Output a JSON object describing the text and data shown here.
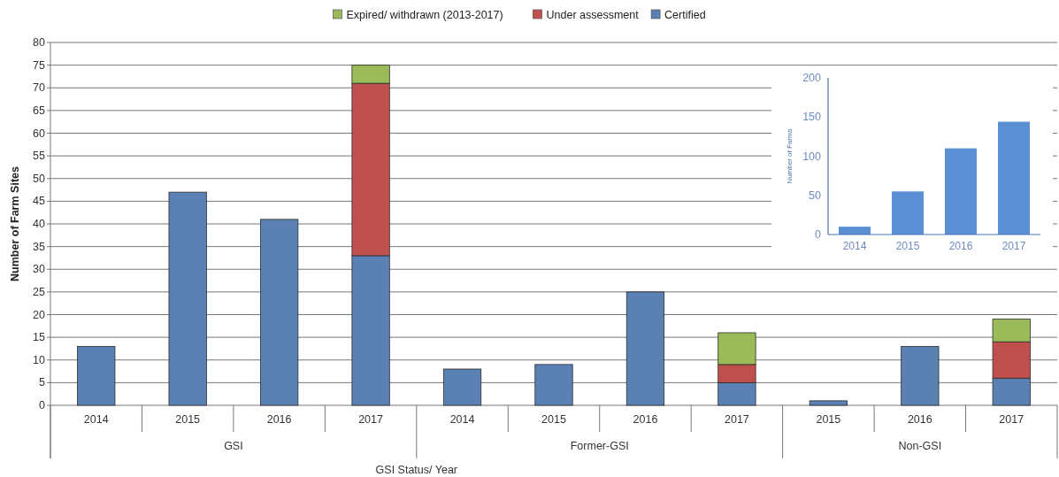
{
  "chart_data": [
    {
      "type": "bar",
      "stacked": true,
      "categories": [
        "2014",
        "2015",
        "2016",
        "2017",
        "2014",
        "2015",
        "2016",
        "2017",
        "2015",
        "2016",
        "2017"
      ],
      "series": [
        {
          "name": "Certified",
          "color": "#5b80b4",
          "values": [
            13,
            47,
            41,
            33,
            8,
            9,
            25,
            5,
            1,
            13,
            6
          ]
        },
        {
          "name": "Under assessment",
          "color": "#c0504d",
          "values": [
            null,
            null,
            null,
            38,
            null,
            null,
            null,
            4,
            null,
            null,
            8
          ]
        },
        {
          "name": "Expired/ withdrawn (2013-2017)",
          "color": "#9bbb59",
          "values": [
            null,
            null,
            null,
            4,
            null,
            null,
            null,
            7,
            null,
            null,
            5
          ]
        }
      ],
      "xlabel": "GSI Status/ Year",
      "ylabel": "Number of Farm Sites",
      "annotations": [
        "GSI",
        "Former-GSI",
        "Non-GSI"
      ],
      "ylim": [
        0,
        80
      ],
      "yticks": [
        0,
        5,
        10,
        15,
        20,
        25,
        30,
        35,
        40,
        45,
        50,
        55,
        60,
        65,
        70,
        75,
        80
      ],
      "grid": "y",
      "legend": "top"
    },
    {
      "type": "bar",
      "categories": [
        "2014",
        "2015",
        "2016",
        "2017"
      ],
      "values": [
        10,
        55,
        110,
        144
      ],
      "color": "#5b8fd4",
      "ylabel": "Number of Farms",
      "ylim": [
        0,
        200
      ],
      "yticks": [
        0,
        50,
        100,
        150,
        200
      ]
    }
  ]
}
